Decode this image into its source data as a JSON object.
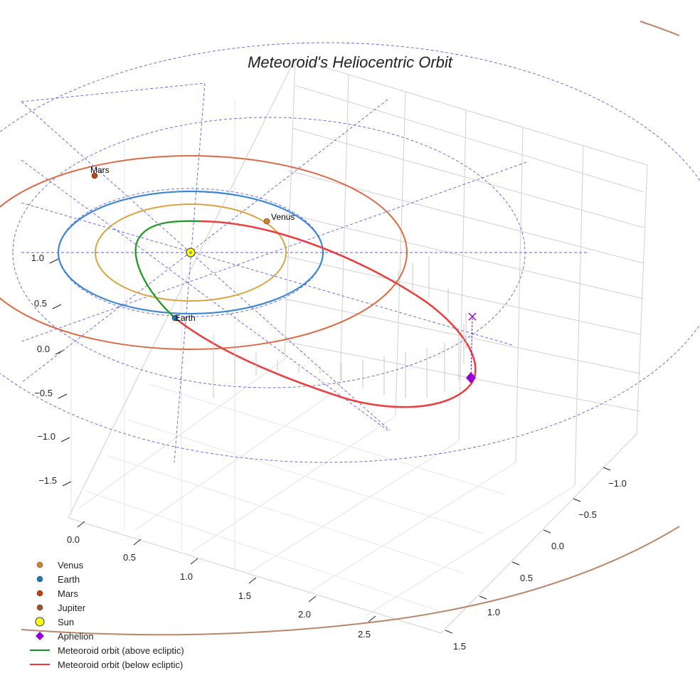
{
  "chart_data": {
    "type": "line",
    "projection": "3d",
    "title": "Meteoroid's Heliocentric Orbit",
    "axes": {
      "x_ticks": [
        "0.0",
        "0.5",
        "1.0",
        "1.5",
        "2.0",
        "2.5"
      ],
      "y_ticks": [
        "−1.0",
        "−0.5",
        "0.0",
        "0.5",
        "1.0",
        "1.5"
      ],
      "z_ticks": [
        "1.0",
        "0.5",
        "0.0",
        "−0.5",
        "−1.0",
        "−1.5"
      ]
    },
    "planet_labels": [
      {
        "name": "Mars"
      },
      {
        "name": "Venus"
      },
      {
        "name": "Earth"
      }
    ],
    "legend": [
      {
        "label": "Venus",
        "marker": "dot",
        "color": "#d4822a"
      },
      {
        "label": "Earth",
        "marker": "dot",
        "color": "#1f77b4"
      },
      {
        "label": "Mars",
        "marker": "dot",
        "color": "#c1440e"
      },
      {
        "label": "Jupiter",
        "marker": "dot",
        "color": "#a0522d"
      },
      {
        "label": "Sun",
        "marker": "sun",
        "color": "#ffff00"
      },
      {
        "label": "Aphelion",
        "marker": "diamond",
        "color": "#9400d3"
      },
      {
        "label": "Meteoroid orbit (above ecliptic)",
        "marker": "line",
        "color": "#1f8f1f"
      },
      {
        "label": "Meteoroid orbit (below ecliptic)",
        "marker": "line",
        "color": "#e83a3a"
      }
    ],
    "orbit_colors": {
      "venus": "#d9a441",
      "earth": "#3b87d1",
      "mars": "#db6a45",
      "jupiter": "#b8866a",
      "meteoroid_above": "#2a9a2a",
      "meteoroid_below": "#ea4040",
      "grid": "#d0d0d0",
      "reference": "#5c5ce6"
    }
  }
}
